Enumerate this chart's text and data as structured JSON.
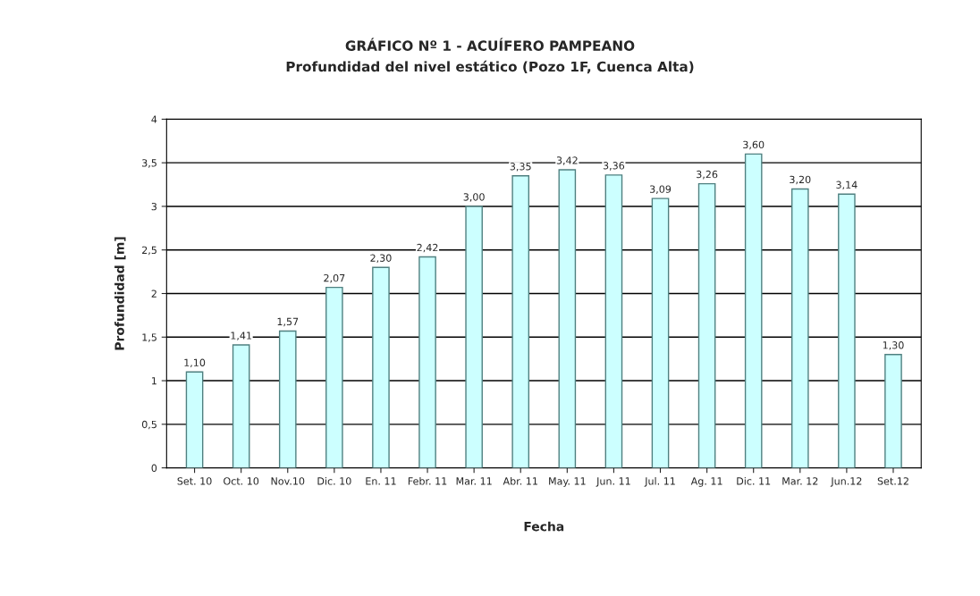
{
  "chart_data": {
    "type": "bar",
    "title": "GRÁFICO Nº 1 - ACUÍFERO PAMPEANO",
    "subtitle": "Profundidad del nivel estático (Pozo 1F, Cuenca Alta)",
    "xlabel": "Fecha",
    "ylabel": "Profundidad [m]",
    "categories": [
      "Set. 10",
      "Oct. 10",
      "Nov.10",
      "Dic. 10",
      "En. 11",
      "Febr. 11",
      "Mar. 11",
      "Abr. 11",
      "May. 11",
      "Jun. 11",
      "Jul. 11",
      "Ag. 11",
      "Dic. 11",
      "Mar. 12",
      "Jun.12",
      "Set.12"
    ],
    "values": [
      1.1,
      1.41,
      1.57,
      2.07,
      2.3,
      2.42,
      3.0,
      3.35,
      3.42,
      3.36,
      3.09,
      3.26,
      3.6,
      3.2,
      3.14,
      1.3
    ],
    "value_labels": [
      "1,10",
      "1,41",
      "1,57",
      "2,07",
      "2,30",
      "2,42",
      "3,00",
      "3,35",
      "3,42",
      "3,36",
      "3,09",
      "3,26",
      "3,60",
      "3,20",
      "3,14",
      "1,30"
    ],
    "color": "#ccffff",
    "ylim": [
      0,
      4
    ],
    "yticks": [
      0,
      {
        "value": 0.5,
        "label": "0,5"
      },
      1,
      {
        "value": 1.5,
        "label": "1,5"
      },
      2,
      {
        "value": 2.5,
        "label": "2,5"
      },
      3,
      {
        "value": 3.5,
        "label": "3,5"
      },
      4
    ],
    "grid": "y",
    "legend": false
  }
}
